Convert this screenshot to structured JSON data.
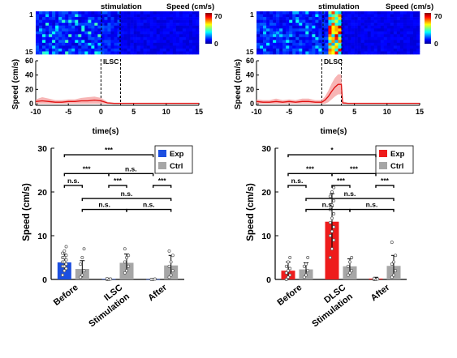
{
  "chart_data": [
    {
      "type": "heatmap",
      "panel": "ILSC",
      "header_label": "stimulation",
      "colorbar_label": "Speed (cm/s)",
      "colorbar_ticks": [
        "70",
        "0"
      ],
      "row_ticks": [
        "1",
        "15"
      ],
      "rows": 15,
      "zlim": [
        0,
        70
      ]
    },
    {
      "type": "line",
      "panel_label": "ILSC",
      "xlabel": "time(s)",
      "ylabel": "Speed (cm/s)",
      "xlim": [
        -10,
        15
      ],
      "ylim": [
        0,
        60
      ],
      "xticks": [
        -10,
        -5,
        0,
        5,
        10,
        15
      ],
      "yticks": [
        0,
        20,
        40,
        60
      ],
      "markers": [
        0,
        3
      ],
      "series": [
        {
          "x": [
            -10,
            -9,
            -8,
            -7,
            -6,
            -5,
            -4,
            -3,
            -2,
            -1,
            0,
            1,
            2,
            3,
            4,
            5,
            6,
            7,
            8,
            9,
            10,
            11,
            12,
            13,
            14,
            15
          ],
          "y": [
            3,
            4,
            3,
            2,
            2,
            3,
            3,
            4,
            4,
            5,
            4,
            1,
            0.5,
            0.5,
            0.5,
            0.5,
            0.5,
            0.5,
            0.5,
            0.5,
            0.5,
            0.5,
            0.5,
            0.5,
            0.5,
            0.5
          ],
          "err": [
            3,
            5,
            4,
            3,
            3,
            3,
            3,
            4,
            5,
            5,
            4,
            1.5,
            1,
            1,
            1,
            1,
            1,
            1,
            1,
            1,
            1,
            1,
            1,
            1,
            1,
            1
          ]
        }
      ]
    },
    {
      "type": "heatmap",
      "panel": "DLSC",
      "header_label": "stimulation",
      "colorbar_label": "Speed (cm/s)",
      "colorbar_ticks": [
        "70",
        "0"
      ],
      "row_ticks": [
        "1",
        "15"
      ],
      "rows": 15,
      "zlim": [
        0,
        70
      ]
    },
    {
      "type": "line",
      "panel_label": "DLSC",
      "xlabel": "time(s)",
      "ylabel": "Speed (cm/s)",
      "xlim": [
        -10,
        15
      ],
      "ylim": [
        0,
        60
      ],
      "xticks": [
        -10,
        -5,
        0,
        5,
        10,
        15
      ],
      "yticks": [
        0,
        20,
        40,
        60
      ],
      "markers": [
        0,
        3
      ],
      "series": [
        {
          "x": [
            -10,
            -9,
            -8,
            -7,
            -6,
            -5,
            -4,
            -3,
            -2,
            -1,
            0,
            0.5,
            1,
            1.5,
            2,
            2.5,
            3,
            3.2,
            4,
            5,
            6,
            7,
            8,
            9,
            10,
            11,
            12,
            13,
            14,
            15
          ],
          "y": [
            3,
            2,
            2,
            3,
            2,
            3,
            2,
            3,
            3,
            2,
            2,
            5,
            10,
            17,
            23,
            27,
            27,
            1,
            0.5,
            0.5,
            0.5,
            0.5,
            0.5,
            0.5,
            0.5,
            0.5,
            0.5,
            0.5,
            0.5,
            0.5
          ],
          "err": [
            3,
            3,
            3,
            4,
            3,
            3,
            3,
            4,
            4,
            3,
            3,
            5,
            8,
            11,
            13,
            14,
            14,
            2,
            1,
            1,
            1,
            1,
            1,
            1,
            1,
            1,
            1,
            1,
            1,
            1
          ]
        }
      ]
    },
    {
      "type": "bar",
      "panel": "ILSC",
      "ylabel": "Speed (cm/s)",
      "ylim": [
        0,
        30
      ],
      "yticks": [
        0,
        10,
        20,
        30
      ],
      "categories": [
        "Before",
        "ILSC\nStimulation",
        "After"
      ],
      "series": [
        {
          "name": "Exp",
          "color": "#1c4fe0",
          "values": [
            3.9,
            0.1,
            0.05
          ],
          "err": [
            1.9,
            0.2,
            0.1
          ],
          "points": [
            [
              1,
              2,
              2.5,
              3,
              3,
              3.5,
              4,
              4,
              4.5,
              5,
              5,
              5.5,
              6,
              6.5,
              7.5
            ],
            [
              0,
              0,
              0.1,
              0.2
            ],
            [
              0,
              0,
              0.1
            ]
          ]
        },
        {
          "name": "Ctrl",
          "color": "#a6a6a6",
          "values": [
            2.4,
            3.8,
            3.2
          ],
          "err": [
            1.9,
            2.0,
            2.3
          ],
          "points": [
            [
              0.5,
              1,
              2,
              3.5,
              5,
              7
            ],
            [
              1.5,
              2,
              3,
              4,
              5,
              5.5,
              7
            ],
            [
              0.5,
              1,
              2,
              3,
              4,
              5.5,
              6.5
            ]
          ]
        }
      ],
      "legend_position": "top-right",
      "significance": [
        {
          "label": "***",
          "level": 28.5
        },
        {
          "label": "***",
          "level": 24.2
        },
        {
          "label": "n.s.",
          "level": 24.2
        },
        {
          "label": "n.s.",
          "level": 21.5
        },
        {
          "label": "***",
          "level": 21.5
        },
        {
          "label": "***",
          "level": 21.5
        },
        {
          "label": "n.s.",
          "level": 18.5
        },
        {
          "label": "n.s.",
          "level": 16.0
        },
        {
          "label": "n.s.",
          "level": 16.0
        }
      ]
    },
    {
      "type": "bar",
      "panel": "DLSC",
      "ylabel": "Speed (cm/s)",
      "ylim": [
        0,
        30
      ],
      "yticks": [
        0,
        10,
        20,
        30
      ],
      "categories": [
        "Before",
        "DLSC\nStimulation",
        "After"
      ],
      "series": [
        {
          "name": "Exp",
          "color": "#ee1c1c",
          "values": [
            2.0,
            13.2,
            0.2
          ],
          "err": [
            2.0,
            6.4,
            0.3
          ],
          "points": [
            [
              0,
              0.5,
              1,
              1.5,
              2,
              2.5,
              3,
              4,
              5
            ],
            [
              5,
              7,
              9,
              10,
              11,
              12,
              13,
              14,
              15,
              16,
              17,
              18,
              19,
              20,
              21
            ],
            [
              0,
              0,
              0.1,
              0.2
            ]
          ]
        },
        {
          "name": "Ctrl",
          "color": "#a6a6a6",
          "values": [
            2.3,
            3.0,
            3.1
          ],
          "err": [
            1.5,
            1.7,
            2.4
          ],
          "points": [
            [
              0.5,
              1,
              2,
              3,
              3.5,
              5
            ],
            [
              1,
              1.5,
              2,
              3,
              4,
              5
            ],
            [
              0.5,
              1,
              2,
              3.5,
              4,
              5.5,
              8.5
            ]
          ]
        }
      ],
      "legend_position": "top-right",
      "significance": [
        {
          "label": "*",
          "level": 28.5
        },
        {
          "label": "***",
          "level": 24.2
        },
        {
          "label": "***",
          "level": 24.2
        },
        {
          "label": "n.s.",
          "level": 21.5
        },
        {
          "label": "***",
          "level": 21.5
        },
        {
          "label": "***",
          "level": 21.5
        },
        {
          "label": "n.s.",
          "level": 18.5
        },
        {
          "label": "n.s.",
          "level": 16.0
        },
        {
          "label": "n.s.",
          "level": 16.0
        }
      ]
    }
  ]
}
